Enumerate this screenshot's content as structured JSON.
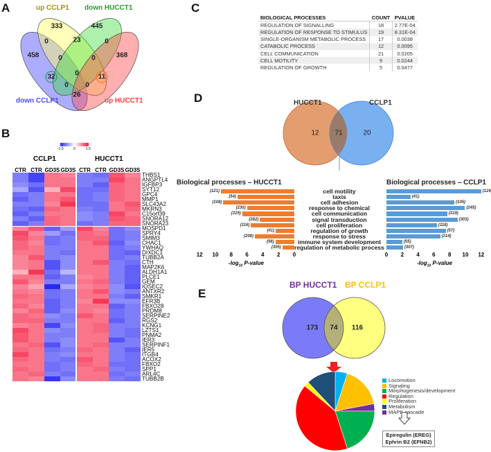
{
  "panels": {
    "a": "A",
    "b": "B",
    "c": "C",
    "d": "D",
    "e": "E"
  },
  "venn_a": {
    "sets": [
      {
        "name": "down CCLP1",
        "color": "#4a4aff"
      },
      {
        "name": "up CCLP1",
        "color": "#b5a020"
      },
      {
        "name": "down HUCCT1",
        "color": "#2a9a2a"
      },
      {
        "name": "up HUCCT1",
        "color": "#ff4d4d"
      }
    ],
    "regions": {
      "only_down_cclp1": "458",
      "only_up_cclp1": "333",
      "only_down_hucct1": "445",
      "only_up_hucct1": "368",
      "dc_uc": "0",
      "uc_dh": "23",
      "dh_uh": "0",
      "dc_uc_dh": "0",
      "uc_dh_uh": "0",
      "dc_dh": "32",
      "center": "0",
      "uc_uh": "11",
      "dc_uc_uh_l": "0",
      "dc_dh_uh_r": "0",
      "dc_uh": "26"
    }
  },
  "heatmap": {
    "scale_labels": [
      "-1.5",
      "0",
      "1.5"
    ],
    "groups": [
      "CCLP1",
      "HUCCT1"
    ],
    "columns": [
      "CTR",
      "CTR",
      "GD3S",
      "GD3S",
      "CTR",
      "CTR",
      "GD3S",
      "GD3S"
    ],
    "genes": [
      "THBS1",
      "ANGPTL4",
      "IGFBP3",
      "SYT12",
      "GPC4",
      "MMP1",
      "SLC43A2",
      "MKRN3",
      "C15orf39",
      "SNORA12",
      "SNORA23",
      "MOSPD1",
      "SPRY4",
      "SMIM3",
      "CHAC1",
      "YWHAQ",
      "DIXDC1",
      "TUBB2A",
      "CTH",
      "MAP2K6",
      "ALDH1A1",
      "PLCE1",
      "GEM",
      "IQSEC2",
      "ANTXR2",
      "SMKR1",
      "EFR3B",
      "FBXO28",
      "PRDM8",
      "SERPINE2",
      "RGS2",
      "KCNG1",
      "LZTS1",
      "PNMA2",
      "IER3",
      "SERPINF1",
      "IER5",
      "ITGB4",
      "ACOX2",
      "FBXO2",
      "SPP1",
      "ARL4C",
      "TUBB2B"
    ],
    "values": [
      [
        -0.9,
        -1.3,
        0.9,
        0.8,
        -0.9,
        -1.0,
        1.1,
        0.8
      ],
      [
        -0.9,
        -1.3,
        0.9,
        0.9,
        -0.9,
        -0.9,
        1.2,
        0.9
      ],
      [
        -0.8,
        -1.0,
        0.9,
        0.9,
        -0.9,
        -1.1,
        1.0,
        0.9
      ],
      [
        -0.6,
        -1.2,
        0.5,
        1.2,
        -1.0,
        -1.0,
        1.0,
        0.9
      ],
      [
        -1.0,
        -0.9,
        0.9,
        0.9,
        -1.0,
        -0.9,
        1.0,
        0.9
      ],
      [
        -1.1,
        -0.9,
        0.9,
        1.1,
        -1.0,
        -0.9,
        1.0,
        0.9
      ],
      [
        -0.9,
        -0.9,
        0.8,
        1.3,
        -1.0,
        -1.0,
        0.9,
        1.1
      ],
      [
        -1.0,
        -1.1,
        1.0,
        0.9,
        -0.9,
        -1.0,
        0.9,
        1.0
      ],
      [
        -1.1,
        -0.9,
        0.9,
        0.9,
        -0.8,
        -0.9,
        1.2,
        0.9
      ],
      [
        -0.9,
        -1.1,
        1.0,
        0.9,
        -0.8,
        -0.9,
        1.1,
        1.0
      ],
      [
        -1.1,
        -0.9,
        1.0,
        0.9,
        -1.0,
        -0.9,
        1.0,
        1.0
      ],
      [
        0.8,
        1.1,
        -1.1,
        -0.7,
        1.2,
        0.8,
        -1.0,
        -0.8
      ],
      [
        1.2,
        0.8,
        -0.7,
        -1.0,
        1.0,
        0.9,
        -1.0,
        -0.9
      ],
      [
        1.1,
        0.9,
        -1.0,
        -0.9,
        1.0,
        1.0,
        -1.0,
        -0.9
      ],
      [
        1.0,
        0.8,
        -1.0,
        -0.9,
        0.9,
        1.1,
        -1.1,
        -0.8
      ],
      [
        1.0,
        0.9,
        -0.9,
        -0.9,
        0.9,
        0.9,
        -1.0,
        -0.9
      ],
      [
        0.9,
        0.9,
        -0.9,
        -1.0,
        0.9,
        0.9,
        -1.0,
        -1.1
      ],
      [
        0.8,
        1.1,
        -0.9,
        -0.8,
        0.9,
        0.9,
        -1.0,
        -0.9
      ],
      [
        0.8,
        0.9,
        -1.2,
        -0.8,
        0.9,
        1.1,
        -0.9,
        -1.0
      ],
      [
        0.8,
        0.9,
        -1.2,
        -0.8,
        0.9,
        0.9,
        -0.9,
        -1.1
      ],
      [
        0.5,
        1.3,
        -1.0,
        -0.5,
        0.9,
        0.9,
        -0.9,
        -1.1
      ],
      [
        0.9,
        0.9,
        -1.1,
        -0.9,
        0.8,
        0.9,
        -0.9,
        -1.1
      ],
      [
        1.1,
        0.8,
        -0.9,
        -0.9,
        0.9,
        1.0,
        -0.9,
        -1.1
      ],
      [
        0.8,
        0.6,
        -1.5,
        -0.6,
        0.8,
        0.9,
        -0.8,
        -1.2
      ],
      [
        0.9,
        0.8,
        -1.0,
        -0.9,
        0.9,
        1.1,
        -0.8,
        -0.9
      ],
      [
        1.0,
        0.9,
        -1.0,
        -0.9,
        0.9,
        0.9,
        -0.9,
        -1.1
      ],
      [
        0.9,
        0.9,
        -1.1,
        -0.9,
        0.8,
        1.3,
        -0.8,
        -0.8
      ],
      [
        1.0,
        0.8,
        -1.1,
        -0.9,
        0.9,
        0.9,
        -1.1,
        -0.9
      ],
      [
        0.8,
        1.0,
        -1.1,
        -0.8,
        0.9,
        0.8,
        -1.0,
        -0.9
      ],
      [
        1.0,
        0.9,
        -0.8,
        -0.9,
        1.1,
        0.9,
        -1.0,
        -0.9
      ],
      [
        1.0,
        1.0,
        -0.9,
        -0.9,
        0.9,
        0.9,
        -1.1,
        -0.9
      ],
      [
        0.8,
        0.9,
        -1.3,
        -0.8,
        0.9,
        1.0,
        -0.9,
        -0.9
      ],
      [
        1.2,
        0.9,
        -0.8,
        -0.9,
        0.9,
        1.0,
        -0.9,
        -1.0
      ],
      [
        1.1,
        0.9,
        -0.9,
        -0.9,
        0.9,
        0.9,
        -0.9,
        -1.0
      ],
      [
        1.1,
        0.9,
        -0.9,
        -0.8,
        0.9,
        0.9,
        -1.2,
        -0.9
      ],
      [
        0.9,
        1.0,
        -1.2,
        -0.8,
        0.9,
        1.0,
        -0.9,
        -0.9
      ],
      [
        1.0,
        0.9,
        -1.0,
        -0.9,
        1.0,
        0.9,
        -0.9,
        -1.1
      ],
      [
        1.2,
        0.9,
        -0.9,
        -0.8,
        0.9,
        0.9,
        -0.9,
        -1.0
      ],
      [
        1.0,
        0.9,
        -0.9,
        -1.0,
        1.1,
        0.9,
        -0.9,
        -1.0
      ],
      [
        0.9,
        0.9,
        -1.0,
        -0.9,
        1.0,
        0.9,
        -1.0,
        -1.0
      ],
      [
        1.0,
        0.9,
        -1.0,
        -0.9,
        0.9,
        1.0,
        -0.9,
        -1.0
      ],
      [
        0.9,
        1.0,
        -0.9,
        -1.0,
        0.9,
        0.9,
        -1.0,
        -0.9
      ],
      [
        0.9,
        0.8,
        -1.4,
        -0.8,
        0.9,
        0.9,
        -0.9,
        -1.0
      ]
    ]
  },
  "table_c": {
    "headers": [
      "BIOLOGICAL PROCESSES",
      "COUNT",
      "PVALUE"
    ],
    "rows": [
      [
        "REGULATION OF SIGNALLING",
        "18",
        "2.77E-04"
      ],
      [
        "REGULATION OF RESPONSE TO STIMULUS",
        "19",
        "8.31E-04"
      ],
      [
        "SINGLE-ORGANISM METABOLIC PROCESS",
        "17",
        "0.0038"
      ],
      [
        "CATABOLIC PROCESS",
        "12",
        "0.0095"
      ],
      [
        "CELL COMMUNICATION",
        "21",
        "0.0205"
      ],
      [
        "CELL MOTILITY",
        "9",
        "0.0244"
      ],
      [
        "REGULATION OF GROWTH",
        "5",
        "0.0477"
      ]
    ]
  },
  "venn_d": {
    "left": "HUCCT1",
    "right": "CCLP1",
    "left_only": "12",
    "both": "71",
    "right_only": "20",
    "left_color": "#e0925f",
    "right_color": "#6aa8ee"
  },
  "chart_data": [
    {
      "type": "bar",
      "orientation": "horizontal-reversed",
      "title": "Biological processes – HUCCT1",
      "xlabel_prefix": "-log",
      "xlabel_sub": "10",
      "xlabel_suffix": " P-value",
      "xlim": [
        0,
        12
      ],
      "ticks": [
        "12",
        "10",
        "8",
        "6",
        "4",
        "2",
        "0"
      ],
      "color": "#ed7d31",
      "categories": [
        "cell motility",
        "taxis",
        "cell adhesion",
        "response to chemical",
        "cell communication",
        "signal transduction",
        "cell proliferation",
        "regulation of growth",
        "response to stress",
        "immune system development",
        "regulation of metabolic process"
      ],
      "values": [
        9.3,
        7.2,
        9.0,
        6.0,
        6.6,
        4.35,
        5.5,
        2.35,
        5.0,
        2.4,
        1.5
      ],
      "counts": [
        "(121)",
        "(54)",
        "(108)",
        "(230)",
        "(319)",
        "(282)",
        "(116)",
        "(41)",
        "(208)",
        "(58)",
        "(305)"
      ]
    },
    {
      "type": "bar",
      "orientation": "horizontal",
      "title": "Biological processes – CCLP1",
      "xlabel_prefix": "-log",
      "xlabel_sub": "10",
      "xlabel_suffix": " P-value",
      "xlim": [
        0,
        12
      ],
      "ticks": [
        "0",
        "2",
        "4",
        "6",
        "8",
        "10",
        "12"
      ],
      "color": "#5b9bd5",
      "categories": [
        "cell motility",
        "taxis",
        "cell adhesion",
        "response to chemical",
        "cell communication",
        "signal transduction",
        "cell proliferation",
        "regulation of growth",
        "response to stress",
        "immune system development",
        "regulation of metabolic process"
      ],
      "values": [
        12.0,
        3.05,
        8.6,
        9.95,
        7.7,
        9.0,
        6.4,
        7.5,
        6.8,
        2.0,
        2.1
      ],
      "counts": [
        "(126)",
        "(41)",
        "(105)",
        "(245)",
        "(319)",
        "(303)",
        "(118)",
        "(57)",
        "(214)",
        "(55)",
        "(307)"
      ]
    },
    {
      "type": "pie",
      "labels": [
        "Locomotion",
        "Signaling",
        "MAPK cascade",
        "Morphogenesis/development",
        "Regulation",
        "Proliferation",
        "Metabolism"
      ],
      "values": [
        5,
        17,
        3,
        20,
        41,
        2,
        12
      ],
      "colors": [
        "#00b0f0",
        "#ffc000",
        "#7030a0",
        "#00b050",
        "#ff0000",
        "#ffff00",
        "#1f4e79"
      ],
      "legend_order": [
        "Locomotion",
        "Signaling",
        "Morphogenesis/development",
        "Regulation",
        "Proliferation",
        "Metabolism",
        "MAPK cascade"
      ],
      "legend_colors": [
        "#00b0f0",
        "#ffc000",
        "#00b050",
        "#ff0000",
        "#ffff00",
        "#1f4e79",
        "#7030a0"
      ]
    }
  ],
  "venn_e": {
    "left": "BP HUCCT1",
    "right": "BP CCLP1",
    "left_only": "173",
    "both": "74",
    "right_only": "116",
    "left_color": "#7030a0",
    "right_color": "#ffc000"
  },
  "genes_box": [
    "Epiregulin (EREG)",
    "Ephrin B2 (EFNB2)"
  ]
}
